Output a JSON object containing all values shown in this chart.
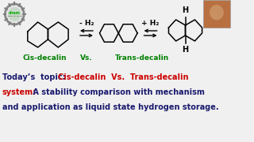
{
  "bg_color": "#f0f0f0",
  "label_cis": "Cis-decalin",
  "label_vs": "Vs.",
  "label_trans": "Trans-decalin",
  "label_color": "#008000",
  "arrow_left_text": "- H₂",
  "arrow_right_text": "+ H₂",
  "h_top": "H",
  "h_bottom": "H",
  "text_dark_navy": "#1a1a6e",
  "text_red": "#cc0000",
  "line1_black": "Today’s  topic: ",
  "line1_red": "Cis-decalin  Vs.  Trans-decalin",
  "line2_red": "system:",
  "line2_black": " A stability comparison with mechanism",
  "line3_black": "and application as liquid state hydrogen storage."
}
